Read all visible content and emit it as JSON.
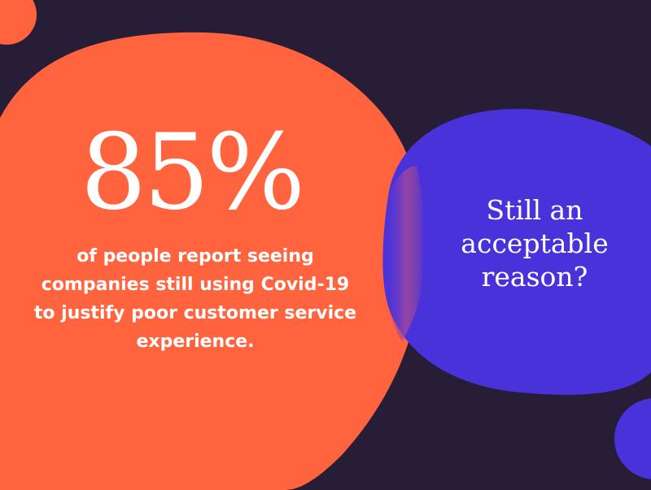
{
  "stat": {
    "value": "85%",
    "caption": "of people report seeing companies still using Covid-19 to justify poor customer service experience."
  },
  "question": "Still an acceptable reason?",
  "colors": {
    "background": "#271d36",
    "orange": "#ff643f",
    "purple": "#4a32db",
    "text": "#ffffff"
  }
}
